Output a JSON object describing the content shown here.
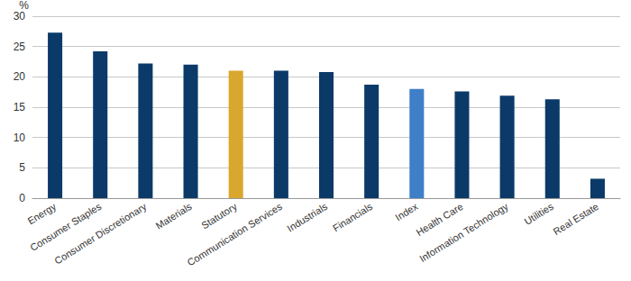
{
  "chart_data": {
    "type": "bar",
    "ylabel": "%",
    "categories": [
      "Energy",
      "Consumer Staples",
      "Consumer Discretionary",
      "Materials",
      "Statutory",
      "Communication Services",
      "Industrials",
      "Financials",
      "Index",
      "Health Care",
      "Information Technology",
      "Utilities",
      "Real Estate"
    ],
    "values": [
      27.3,
      24.2,
      22.2,
      22.0,
      21.0,
      21.0,
      20.8,
      18.7,
      18.0,
      17.6,
      16.9,
      16.3,
      3.2
    ],
    "colors": [
      "#0b3a69",
      "#0b3a69",
      "#0b3a69",
      "#0b3a69",
      "#d9a62e",
      "#0b3a69",
      "#0b3a69",
      "#0b3a69",
      "#3f7fc8",
      "#0b3a69",
      "#0b3a69",
      "#0b3a69",
      "#0b3a69"
    ],
    "ylim": [
      0,
      30
    ],
    "yticks": [
      0,
      5,
      10,
      15,
      20,
      25,
      30
    ],
    "grid": true
  }
}
